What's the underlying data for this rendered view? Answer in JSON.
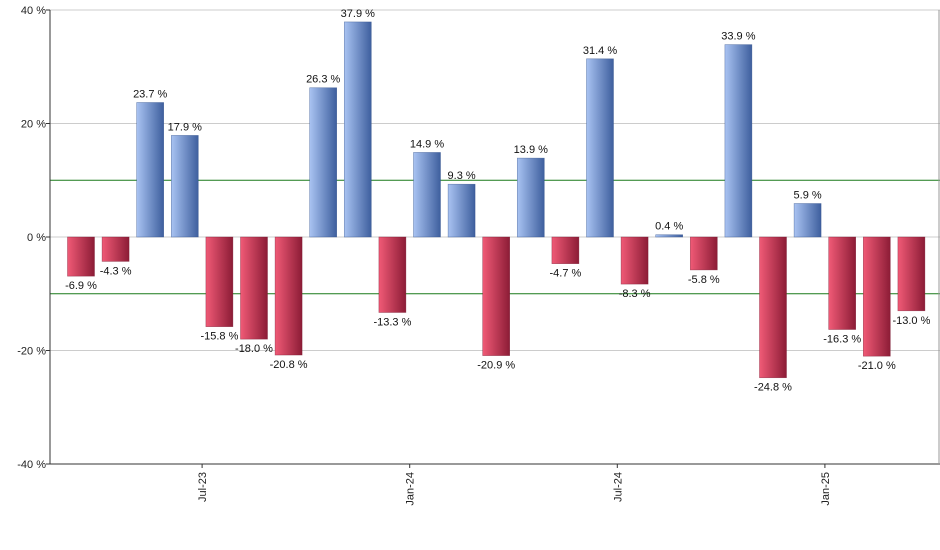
{
  "chart_data": {
    "type": "bar",
    "ylim": [
      -40,
      40
    ],
    "yticks": [
      {
        "value": 40,
        "label": "40 %"
      },
      {
        "value": 20,
        "label": "20 %"
      },
      {
        "value": 0,
        "label": "0 %"
      },
      {
        "value": -20,
        "label": "-20 %"
      },
      {
        "value": -40,
        "label": "-40 %"
      }
    ],
    "grid": true,
    "reference_lines": [
      10,
      -10
    ],
    "x_tick_labels": [
      {
        "after_bar_index": 3,
        "label": "Jul-23"
      },
      {
        "after_bar_index": 9,
        "label": "Jan-24"
      },
      {
        "after_bar_index": 15,
        "label": "Jul-24"
      },
      {
        "after_bar_index": 21,
        "label": "Jan-25"
      }
    ],
    "values": [
      -6.9,
      -4.3,
      23.7,
      17.9,
      -15.8,
      -18.0,
      -20.8,
      26.3,
      37.9,
      -13.3,
      14.9,
      9.3,
      -20.9,
      13.9,
      -4.7,
      31.4,
      -8.3,
      0.4,
      -5.8,
      33.9,
      -24.8,
      5.9,
      -16.3,
      -21.0,
      -13.0
    ],
    "value_labels": [
      "-6.9 %",
      "-4.3 %",
      "23.7 %",
      "17.9 %",
      "-15.8 %",
      "-18.0 %",
      "-20.8 %",
      "26.3 %",
      "37.9 %",
      "-13.3 %",
      "14.9 %",
      "9.3 %",
      "-20.9 %",
      "13.9 %",
      "-4.7 %",
      "31.4 %",
      "-8.3 %",
      "0.4 %",
      "-5.8 %",
      "33.9 %",
      "-24.8 %",
      "5.9 %",
      "-16.3 %",
      "-21.0 %",
      "-13.0 %"
    ],
    "colors": {
      "positive_light": "#a9c3f2",
      "positive_dark": "#3e5f9e",
      "negative_light": "#f05a76",
      "negative_dark": "#8c1c36",
      "reference_line": "#1a7a1a",
      "grid": "#cccccc"
    }
  }
}
